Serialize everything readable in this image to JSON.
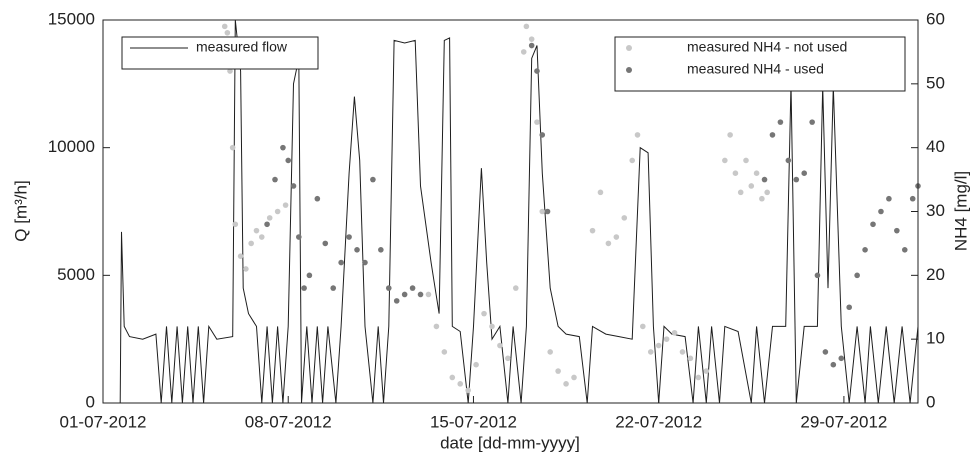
{
  "chart_data": {
    "type": "combo",
    "xlabel": "date [dd-mm-yyyy]",
    "ylabel": "Q [m³/h]",
    "y2label": "NH4 [mg/l]",
    "xlim": [
      0,
      30.8
    ],
    "xticks": [
      {
        "value": 0,
        "label": "01-07-2012"
      },
      {
        "value": 7,
        "label": "08-07-2012"
      },
      {
        "value": 14,
        "label": "15-07-2012"
      },
      {
        "value": 21,
        "label": "22-07-2012"
      },
      {
        "value": 28,
        "label": "29-07-2012"
      }
    ],
    "ylim": [
      0,
      15000
    ],
    "yticks": [
      0,
      5000,
      10000,
      15000
    ],
    "y2lim": [
      0,
      60
    ],
    "y2ticks": [
      0,
      10,
      20,
      30,
      40,
      50,
      60
    ],
    "grid": false,
    "series": [
      {
        "name": "measured flow",
        "type": "line",
        "color": "#1e1e1e",
        "x": [
          0,
          0.65,
          0.7,
          0.8,
          1.0,
          1.5,
          2.0,
          2.2,
          2.4,
          2.6,
          2.8,
          3.0,
          3.2,
          3.4,
          3.6,
          3.8,
          4.0,
          4.3,
          4.9,
          5.0,
          5.2,
          5.3,
          5.5,
          5.8,
          6.0,
          6.2,
          6.4,
          6.6,
          6.8,
          7.0,
          7.2,
          7.4,
          7.5,
          7.7,
          7.9,
          8.1,
          8.3,
          8.5,
          8.8,
          9.0,
          9.3,
          9.5,
          9.7,
          9.9,
          10.2,
          10.4,
          10.6,
          10.8,
          11.0,
          11.4,
          11.8,
          12.0,
          12.4,
          12.7,
          12.9,
          13.1,
          13.2,
          13.5,
          13.8,
          14.0,
          14.3,
          14.5,
          14.7,
          15.0,
          15.3,
          15.5,
          15.8,
          16.0,
          16.2,
          16.4,
          16.6,
          16.9,
          17.2,
          17.5,
          18.0,
          18.3,
          18.5,
          19.0,
          19.5,
          20.0,
          20.3,
          20.6,
          20.8,
          21.0,
          21.2,
          21.5,
          22.0,
          22.3,
          22.5,
          22.8,
          23.0,
          23.3,
          23.5,
          24.0,
          24.5,
          24.7,
          25.0,
          25.3,
          25.8,
          26.0,
          26.2,
          26.5,
          27.0,
          27.2,
          27.4,
          27.6,
          27.9,
          28.2,
          28.5,
          28.8,
          29.0,
          29.3,
          29.6,
          29.9,
          30.2,
          30.5,
          30.8
        ],
        "values": [
          0,
          0,
          6700,
          3000,
          2600,
          2500,
          2700,
          0,
          3000,
          0,
          3000,
          0,
          3000,
          0,
          3000,
          0,
          3000,
          2500,
          2600,
          15000,
          13000,
          4500,
          3500,
          3000,
          0,
          3000,
          0,
          3000,
          0,
          3000,
          12500,
          13500,
          0,
          3000,
          0,
          3000,
          0,
          3000,
          0,
          3000,
          9000,
          12000,
          9500,
          3000,
          0,
          3000,
          0,
          3000,
          14200,
          14100,
          14200,
          8500,
          5500,
          3500,
          14200,
          14300,
          3000,
          2800,
          0,
          3000,
          9200,
          5500,
          2500,
          3000,
          0,
          3000,
          0,
          3000,
          13500,
          14000,
          9000,
          4500,
          3000,
          2700,
          2600,
          0,
          3000,
          2700,
          2600,
          2500,
          10000,
          9800,
          3000,
          0,
          3000,
          2700,
          2600,
          0,
          3000,
          0,
          3000,
          0,
          3000,
          2800,
          0,
          3000,
          0,
          3000,
          3000,
          12500,
          0,
          3000,
          3000,
          12400,
          4500,
          12400,
          3000,
          0,
          3000,
          0,
          3000,
          0,
          3000,
          0,
          3000,
          0,
          3000
        ]
      },
      {
        "name": "measured NH4 - not used",
        "type": "scatter",
        "axis": "y2",
        "color": "#c8c8c8",
        "x": [
          4.5,
          4.6,
          4.7,
          4.8,
          4.9,
          5.0,
          5.2,
          5.4,
          5.6,
          5.8,
          6.0,
          6.3,
          6.6,
          6.9,
          12.3,
          12.6,
          12.9,
          13.2,
          13.5,
          13.8,
          14.1,
          14.4,
          14.7,
          15.0,
          15.3,
          15.6,
          15.9,
          16.0,
          16.2,
          16.4,
          16.6,
          16.9,
          17.2,
          17.5,
          17.8,
          18.5,
          18.8,
          19.1,
          19.4,
          19.7,
          20.0,
          20.2,
          20.4,
          20.7,
          21.0,
          21.3,
          21.6,
          21.9,
          22.2,
          22.5,
          22.8,
          23.5,
          23.7,
          23.9,
          24.1,
          24.3,
          24.5,
          24.7,
          24.9,
          25.1
        ],
        "values": [
          57,
          59,
          58,
          52,
          40,
          28,
          23,
          21,
          25,
          27,
          26,
          29,
          30,
          31,
          17,
          12,
          8,
          4,
          3,
          2,
          6,
          14,
          12,
          9,
          7,
          18,
          55,
          59,
          57,
          44,
          30,
          8,
          5,
          3,
          4,
          27,
          33,
          25,
          26,
          29,
          38,
          42,
          12,
          8,
          9,
          10,
          11,
          8,
          7,
          4,
          5,
          38,
          42,
          36,
          33,
          38,
          34,
          36,
          32,
          33
        ]
      },
      {
        "name": "measured NH4 - used",
        "type": "scatter",
        "axis": "y2",
        "color": "#767676",
        "x": [
          6.2,
          6.5,
          6.8,
          7.0,
          7.2,
          7.4,
          7.6,
          7.8,
          8.1,
          8.4,
          8.7,
          9.0,
          9.3,
          9.6,
          9.9,
          10.2,
          10.5,
          10.8,
          11.1,
          11.4,
          11.7,
          12.0,
          16.2,
          16.4,
          16.6,
          16.8,
          25.0,
          25.3,
          25.6,
          25.9,
          26.2,
          26.5,
          26.8,
          27.0,
          27.3,
          27.6,
          27.9,
          28.2,
          28.5,
          28.8,
          29.1,
          29.4,
          29.7,
          30.0,
          30.3,
          30.6,
          30.8
        ],
        "values": [
          28,
          35,
          40,
          38,
          34,
          26,
          18,
          20,
          32,
          25,
          18,
          22,
          26,
          24,
          22,
          35,
          24,
          18,
          16,
          17,
          18,
          17,
          56,
          52,
          42,
          30,
          35,
          42,
          44,
          38,
          35,
          36,
          44,
          20,
          8,
          6,
          7,
          15,
          20,
          24,
          28,
          30,
          32,
          27,
          24,
          32,
          34
        ]
      }
    ]
  }
}
